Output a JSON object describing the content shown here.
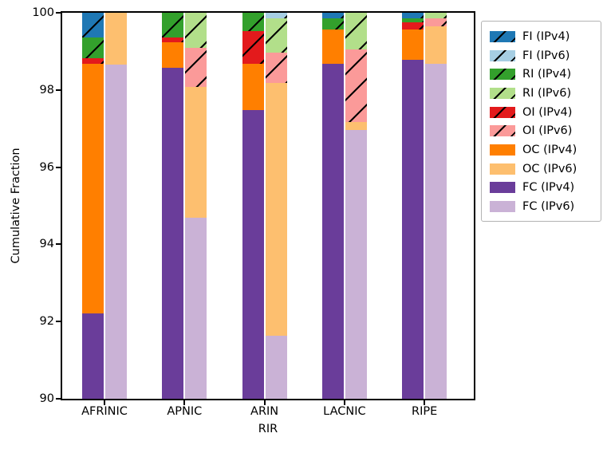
{
  "chart_data": {
    "type": "bar",
    "stacked": true,
    "title": "",
    "xlabel": "RIR",
    "ylabel": "Cumulative Fraction",
    "ylim": [
      90,
      100
    ],
    "yticks": [
      "100",
      "98",
      "96",
      "94",
      "92",
      "90"
    ],
    "grid": false,
    "legend_position": "outside-top-right",
    "categories": [
      "AFRINIC",
      "APNIC",
      "ARIN",
      "LACNIC",
      "RIPE"
    ],
    "segment_order": [
      "FC",
      "OC",
      "OI",
      "RI",
      "FI"
    ],
    "hatched_keys": [
      "OI",
      "RI",
      "FI"
    ],
    "palette": {
      "FI_IPv4": "#1f78b4",
      "FI_IPv6": "#a6cee3",
      "RI_IPv4": "#33a02c",
      "RI_IPv6": "#b2df8a",
      "OI_IPv4": "#e31a1c",
      "OI_IPv6": "#fb9a99",
      "OC_IPv4": "#ff7f00",
      "OC_IPv6": "#fdbf6f",
      "FC_IPv4": "#6a3d9a",
      "FC_IPv6": "#cab2d6"
    },
    "legend": [
      {
        "label": "FI (IPv4)",
        "color": "#1f78b4",
        "hatch": true
      },
      {
        "label": "FI (IPv6)",
        "color": "#a6cee3",
        "hatch": true
      },
      {
        "label": "RI (IPv4)",
        "color": "#33a02c",
        "hatch": true
      },
      {
        "label": "RI (IPv6)",
        "color": "#b2df8a",
        "hatch": true
      },
      {
        "label": "OI (IPv4)",
        "color": "#e31a1c",
        "hatch": true
      },
      {
        "label": "OI (IPv6)",
        "color": "#fb9a99",
        "hatch": true
      },
      {
        "label": "OC (IPv4)",
        "color": "#ff7f00",
        "hatch": false
      },
      {
        "label": "OC (IPv6)",
        "color": "#fdbf6f",
        "hatch": false
      },
      {
        "label": "FC (IPv4)",
        "color": "#6a3d9a",
        "hatch": false
      },
      {
        "label": "FC (IPv6)",
        "color": "#cab2d6",
        "hatch": false
      }
    ],
    "bars": [
      {
        "rir": "AFRINIC",
        "family": "IPv4",
        "segments": [
          {
            "key": "FC",
            "from": 90.0,
            "to": 92.22
          },
          {
            "key": "OC",
            "from": 92.22,
            "to": 98.68
          },
          {
            "key": "OI",
            "from": 98.68,
            "to": 98.82
          },
          {
            "key": "RI",
            "from": 98.82,
            "to": 99.37
          },
          {
            "key": "FI",
            "from": 99.37,
            "to": 100.0
          }
        ]
      },
      {
        "rir": "AFRINIC",
        "family": "IPv6",
        "segments": [
          {
            "key": "FC",
            "from": 90.0,
            "to": 98.65
          },
          {
            "key": "OC",
            "from": 98.65,
            "to": 100.0
          }
        ]
      },
      {
        "rir": "APNIC",
        "family": "IPv4",
        "segments": [
          {
            "key": "FC",
            "from": 90.0,
            "to": 98.58
          },
          {
            "key": "OC",
            "from": 98.58,
            "to": 99.24
          },
          {
            "key": "OI",
            "from": 99.24,
            "to": 99.37
          },
          {
            "key": "RI",
            "from": 99.37,
            "to": 100.0
          }
        ]
      },
      {
        "rir": "APNIC",
        "family": "IPv6",
        "segments": [
          {
            "key": "FC",
            "from": 90.0,
            "to": 94.69
          },
          {
            "key": "OC",
            "from": 94.69,
            "to": 98.08
          },
          {
            "key": "OI",
            "from": 98.08,
            "to": 99.09
          },
          {
            "key": "RI",
            "from": 99.09,
            "to": 100.0
          }
        ]
      },
      {
        "rir": "ARIN",
        "family": "IPv4",
        "segments": [
          {
            "key": "FC",
            "from": 90.0,
            "to": 97.47
          },
          {
            "key": "OC",
            "from": 97.47,
            "to": 98.68
          },
          {
            "key": "OI",
            "from": 98.68,
            "to": 99.53
          },
          {
            "key": "RI",
            "from": 99.53,
            "to": 100.0
          }
        ]
      },
      {
        "rir": "ARIN",
        "family": "IPv6",
        "segments": [
          {
            "key": "FC",
            "from": 90.0,
            "to": 91.64
          },
          {
            "key": "OC",
            "from": 91.64,
            "to": 98.18
          },
          {
            "key": "OI",
            "from": 98.18,
            "to": 98.96
          },
          {
            "key": "RI",
            "from": 98.96,
            "to": 99.86
          },
          {
            "key": "FI",
            "from": 99.86,
            "to": 100.0
          }
        ]
      },
      {
        "rir": "LACNIC",
        "family": "IPv4",
        "segments": [
          {
            "key": "FC",
            "from": 90.0,
            "to": 98.68
          },
          {
            "key": "OC",
            "from": 98.68,
            "to": 99.57
          },
          {
            "key": "RI",
            "from": 99.57,
            "to": 99.85
          },
          {
            "key": "FI",
            "from": 99.85,
            "to": 100.0
          }
        ]
      },
      {
        "rir": "LACNIC",
        "family": "IPv6",
        "segments": [
          {
            "key": "FC",
            "from": 90.0,
            "to": 96.97
          },
          {
            "key": "OC",
            "from": 96.97,
            "to": 97.16
          },
          {
            "key": "OI",
            "from": 97.16,
            "to": 99.06
          },
          {
            "key": "RI",
            "from": 99.06,
            "to": 100.0
          }
        ]
      },
      {
        "rir": "RIPE",
        "family": "IPv4",
        "segments": [
          {
            "key": "FC",
            "from": 90.0,
            "to": 98.79
          },
          {
            "key": "OC",
            "from": 98.79,
            "to": 99.57
          },
          {
            "key": "OI",
            "from": 99.57,
            "to": 99.76
          },
          {
            "key": "RI",
            "from": 99.76,
            "to": 99.86
          },
          {
            "key": "FI",
            "from": 99.86,
            "to": 100.0
          }
        ]
      },
      {
        "rir": "RIPE",
        "family": "IPv6",
        "segments": [
          {
            "key": "FC",
            "from": 90.0,
            "to": 98.68
          },
          {
            "key": "OC",
            "from": 98.68,
            "to": 99.64
          },
          {
            "key": "OI",
            "from": 99.64,
            "to": 99.85
          },
          {
            "key": "RI",
            "from": 99.85,
            "to": 100.0
          }
        ]
      }
    ]
  }
}
